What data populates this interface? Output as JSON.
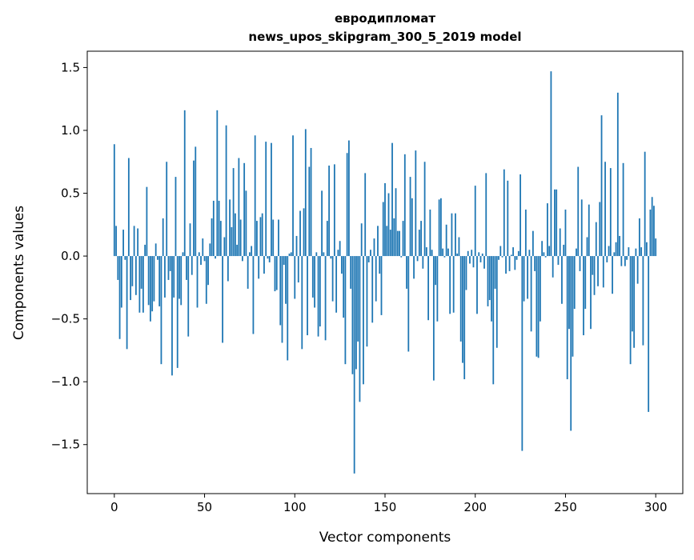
{
  "chart_data": {
    "type": "bar",
    "title": [
      "евродипломат",
      "news_upos_skipgram_300_5_2019 model"
    ],
    "xlabel": "Vector components",
    "ylabel": "Components values",
    "xlim": [
      -15,
      315
    ],
    "ylim": [
      -1.89,
      1.63
    ],
    "xticks": [
      0,
      50,
      100,
      150,
      200,
      250,
      300
    ],
    "xtick_labels": [
      "0",
      "50",
      "100",
      "150",
      "200",
      "250",
      "300"
    ],
    "yticks": [
      -1.5,
      -1.0,
      -0.5,
      0.0,
      0.5,
      1.0,
      1.5
    ],
    "ytick_labels": [
      "−1.5",
      "−1.0",
      "−0.5",
      "0.0",
      "0.5",
      "1.0",
      "1.5"
    ],
    "grid": false,
    "bar_color": "#1f77b4",
    "values": [
      0.89,
      0.24,
      -0.19,
      -0.66,
      -0.41,
      0.21,
      -0.03,
      -0.74,
      0.78,
      -0.35,
      -0.24,
      0.24,
      -0.31,
      0.22,
      -0.45,
      -0.26,
      -0.45,
      0.09,
      0.55,
      -0.39,
      -0.52,
      -0.44,
      -0.36,
      0.1,
      -0.03,
      -0.4,
      -0.86,
      0.3,
      -0.33,
      0.75,
      -0.19,
      -0.12,
      -0.95,
      -0.33,
      0.63,
      -0.89,
      -0.34,
      -0.39,
      0.03,
      1.16,
      -0.19,
      -0.64,
      0.26,
      -0.15,
      0.76,
      0.87,
      -0.41,
      0.03,
      -0.07,
      0.14,
      -0.04,
      -0.38,
      -0.23,
      0.1,
      0.3,
      0.44,
      -0.02,
      1.16,
      0.44,
      0.28,
      -0.69,
      0.15,
      1.04,
      -0.2,
      0.45,
      0.23,
      0.7,
      0.34,
      0.09,
      0.78,
      0.29,
      -0.04,
      0.74,
      0.52,
      -0.26,
      0.03,
      0.08,
      -0.62,
      0.96,
      0.28,
      -0.18,
      0.31,
      0.34,
      -0.14,
      0.91,
      -0.02,
      -0.05,
      0.9,
      0.29,
      -0.28,
      -0.27,
      0.29,
      -0.55,
      -0.69,
      -0.07,
      -0.38,
      -0.83,
      0.02,
      0.03,
      0.96,
      -0.34,
      0.16,
      -0.21,
      0.36,
      -0.74,
      0.38,
      1.01,
      -0.63,
      0.71,
      0.86,
      -0.33,
      -0.41,
      0.03,
      -0.64,
      -0.56,
      0.52,
      0.03,
      -0.67,
      0.28,
      0.72,
      -0.02,
      -0.36,
      0.73,
      -0.45,
      0.05,
      0.12,
      -0.14,
      -0.49,
      -0.86,
      0.82,
      0.92,
      -0.26,
      -0.94,
      -1.73,
      -0.9,
      -0.68,
      -1.16,
      0.26,
      -1.02,
      0.66,
      -0.72,
      -0.05,
      0.05,
      -0.53,
      0.14,
      -0.36,
      0.24,
      -0.14,
      -0.47,
      0.43,
      0.58,
      0.24,
      0.5,
      0.21,
      0.9,
      0.3,
      0.54,
      0.2,
      0.2,
      -0.01,
      0.28,
      0.81,
      -0.26,
      -0.76,
      0.63,
      0.46,
      -0.18,
      0.84,
      -0.04,
      0.21,
      0.28,
      -0.1,
      0.75,
      0.07,
      -0.51,
      0.37,
      0.05,
      -0.99,
      -0.23,
      -0.52,
      0.45,
      0.46,
      0.06,
      -0.01,
      0.25,
      0.06,
      -0.46,
      0.34,
      -0.45,
      0.34,
      0.02,
      0.15,
      -0.68,
      -0.85,
      -0.98,
      -0.27,
      0.04,
      -0.06,
      0.05,
      -0.09,
      0.56,
      -0.46,
      0.03,
      -0.05,
      0.02,
      -0.1,
      0.66,
      -0.4,
      -0.35,
      -0.52,
      -1.02,
      -0.26,
      -0.73,
      -0.03,
      0.08,
      -0.01,
      0.69,
      -0.14,
      0.6,
      -0.12,
      0.01,
      0.07,
      -0.11,
      -0.03,
      0.04,
      0.65,
      -1.55,
      -0.36,
      0.37,
      -0.34,
      0.05,
      -0.6,
      0.2,
      -0.12,
      -0.8,
      -0.81,
      -0.52,
      0.12,
      0.03,
      -0.01,
      0.42,
      0.08,
      1.47,
      -0.17,
      0.53,
      0.53,
      -0.07,
      0.22,
      -0.38,
      0.09,
      0.37,
      -0.98,
      -0.58,
      -1.39,
      -0.8,
      -0.42,
      0.06,
      0.71,
      -0.12,
      0.45,
      -0.63,
      -0.42,
      0.15,
      0.41,
      -0.58,
      -0.15,
      -0.31,
      0.27,
      -0.24,
      0.43,
      1.12,
      -0.25,
      0.75,
      -0.05,
      0.08,
      0.7,
      -0.3,
      0.03,
      0.11,
      1.3,
      0.16,
      -0.08,
      0.74,
      -0.08,
      -0.03,
      0.07,
      -0.86,
      -0.6,
      -0.73,
      0.06,
      -0.22,
      0.3,
      0.07,
      -0.71,
      0.83,
      0.11,
      -1.24,
      0.37,
      0.47,
      0.4,
      0.14
    ]
  }
}
